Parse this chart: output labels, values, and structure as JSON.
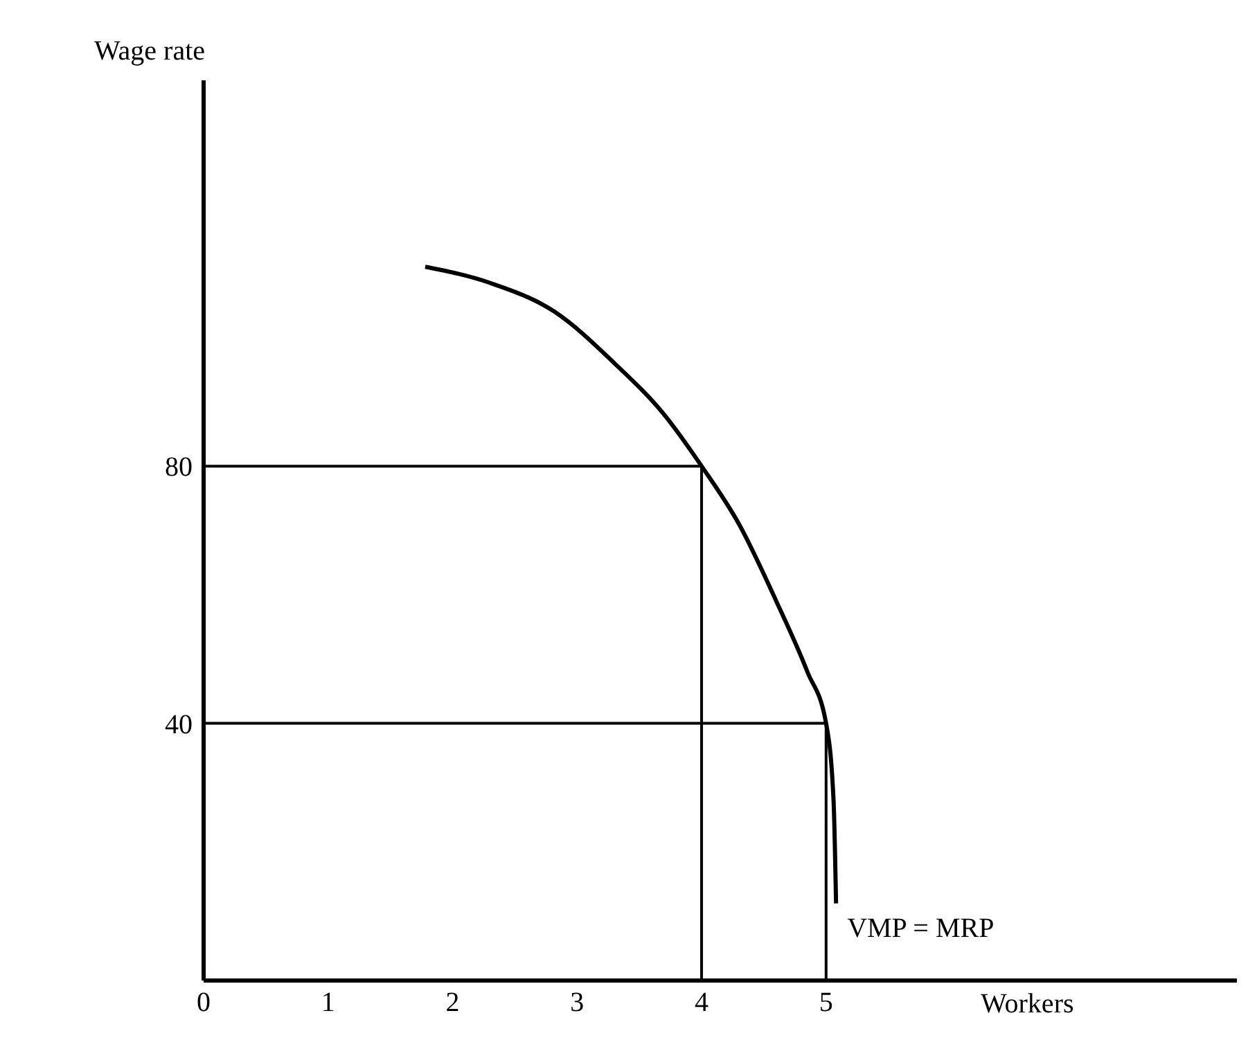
{
  "chart_data": {
    "type": "line",
    "xlabel": "Workers",
    "ylabel": "Wage rate",
    "xlim": [
      0,
      8.3
    ],
    "xticks": [
      0,
      1,
      2,
      3,
      4,
      5
    ],
    "ylim": [
      0,
      140
    ],
    "yticks": [
      40,
      80
    ],
    "grid": false,
    "marker": "none",
    "line_style": "solid",
    "series": [
      {
        "name": "VMP = MRP",
        "color": "#000000",
        "x": [
          1.78,
          2.3,
          2.82,
          3.3,
          3.7,
          4,
          4.3,
          4.6,
          4.85,
          5,
          5.06,
          5.08
        ],
        "values": [
          111,
          108.5,
          104,
          96,
          88,
          80,
          71,
          59,
          48,
          40,
          28,
          12
        ]
      },
      {
        "color": "#000000",
        "x": [
          0,
          4,
          4
        ],
        "values": [
          80,
          80,
          0
        ]
      },
      {
        "color": "#000000",
        "x": [
          0,
          5,
          5
        ],
        "values": [
          40,
          40,
          0
        ]
      }
    ]
  }
}
